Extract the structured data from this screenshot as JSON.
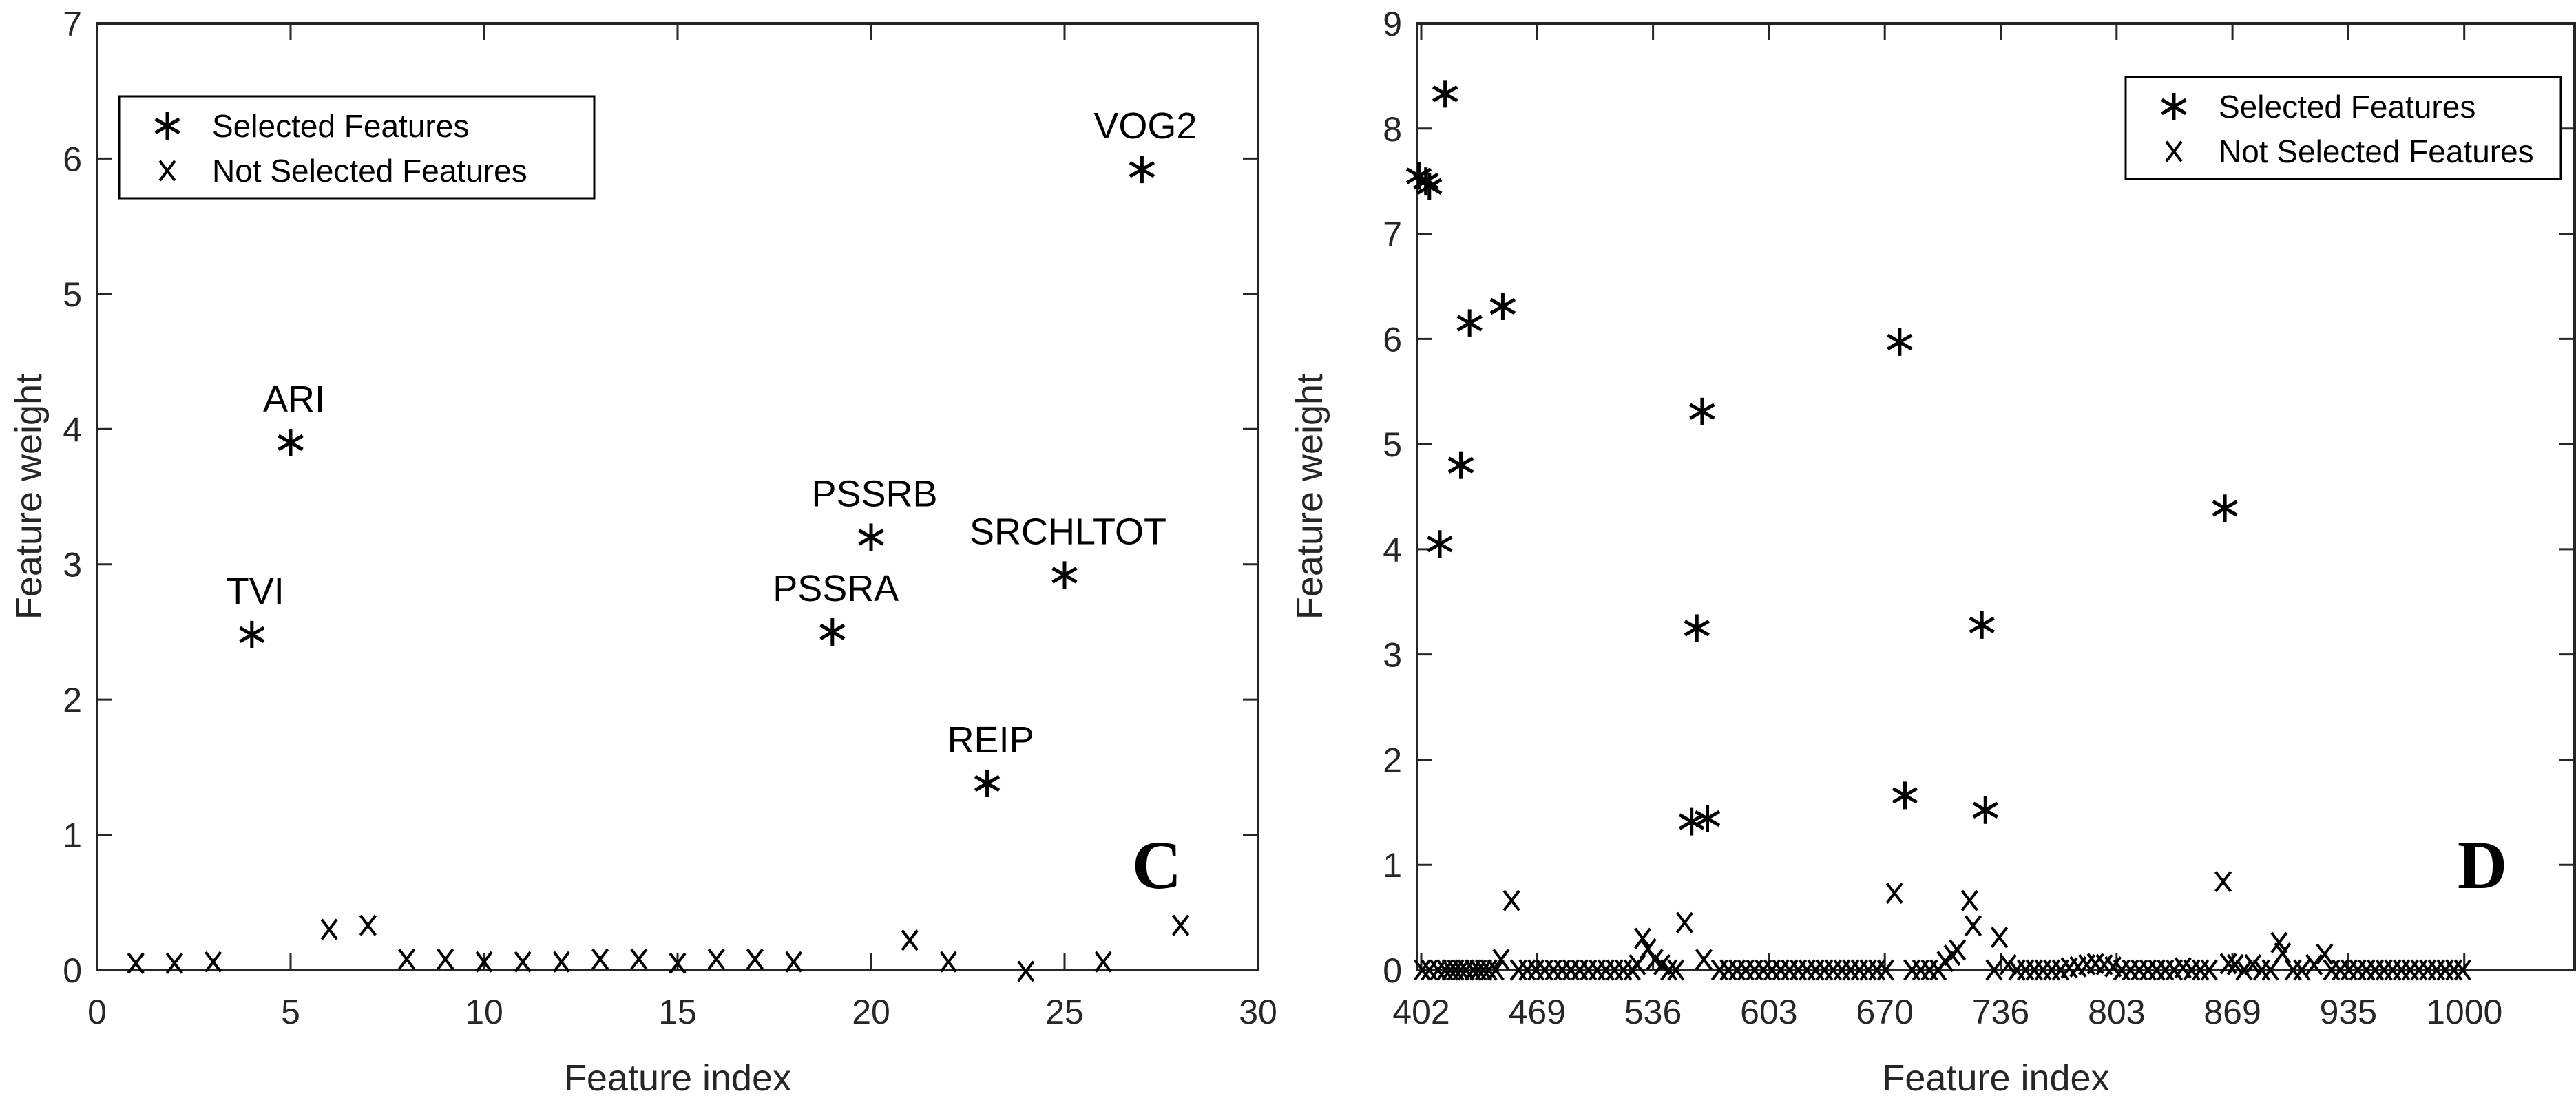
{
  "chart_data": [
    {
      "panel_label": "C",
      "type": "scatter",
      "xlabel": "Feature index",
      "ylabel": "Feature weight",
      "xlim": [
        0,
        30
      ],
      "ylim": [
        0,
        7
      ],
      "xticks": [
        "0",
        "5",
        "10",
        "15",
        "20",
        "25",
        "30"
      ],
      "yticks": [
        "0",
        "1",
        "2",
        "3",
        "4",
        "5",
        "6",
        "7"
      ],
      "legend": {
        "placement": "top-left",
        "entries": [
          "Selected Features",
          "Not Selected Features"
        ]
      },
      "selected": [
        {
          "x": 4,
          "y": 2.48,
          "label": "TVI"
        },
        {
          "x": 5,
          "y": 3.9,
          "label": "ARI"
        },
        {
          "x": 19,
          "y": 2.5,
          "label": "PSSRA"
        },
        {
          "x": 20,
          "y": 3.2,
          "label": "PSSRB"
        },
        {
          "x": 23,
          "y": 1.38,
          "label": "REIP"
        },
        {
          "x": 25,
          "y": 2.92,
          "label": "SRCHLTOT"
        },
        {
          "x": 27,
          "y": 5.92,
          "label": "VOG2"
        }
      ],
      "not_selected": [
        [
          1,
          0.05
        ],
        [
          2,
          0.05
        ],
        [
          3,
          0.06
        ],
        [
          6,
          0.3
        ],
        [
          7,
          0.33
        ],
        [
          8,
          0.08
        ],
        [
          9,
          0.08
        ],
        [
          10,
          0.06
        ],
        [
          11,
          0.06
        ],
        [
          12,
          0.06
        ],
        [
          13,
          0.08
        ],
        [
          14,
          0.08
        ],
        [
          15,
          0.05
        ],
        [
          16,
          0.08
        ],
        [
          17,
          0.08
        ],
        [
          18,
          0.06
        ],
        [
          21,
          0.22
        ],
        [
          22,
          0.06
        ],
        [
          24,
          -0.01
        ],
        [
          26,
          0.06
        ],
        [
          28,
          0.33
        ]
      ]
    },
    {
      "panel_label": "D",
      "type": "scatter",
      "xlabel": "Feature index",
      "ylabel": "Feature weight",
      "xlim": [
        402,
        1064
      ],
      "ylim": [
        0,
        9
      ],
      "xticks": [
        "402",
        "469",
        "536",
        "603",
        "670",
        "736",
        "803",
        "869",
        "935",
        "1000"
      ],
      "yticks": [
        "0",
        "1",
        "2",
        "3",
        "4",
        "5",
        "6",
        "7",
        "8",
        "9"
      ],
      "legend": {
        "placement": "top-right",
        "entries": [
          "Selected Features",
          "Not Selected Features"
        ]
      },
      "selected": [
        [
          403,
          7.55
        ],
        [
          407,
          7.5
        ],
        [
          409,
          7.45
        ],
        [
          418,
          8.33
        ],
        [
          415,
          4.05
        ],
        [
          427,
          4.8
        ],
        [
          432,
          6.15
        ],
        [
          451,
          6.31
        ],
        [
          559,
          1.41
        ],
        [
          562,
          3.25
        ],
        [
          565,
          5.31
        ],
        [
          568,
          1.44
        ],
        [
          678,
          5.97
        ],
        [
          681,
          1.66
        ],
        [
          725,
          3.28
        ],
        [
          727,
          1.52
        ],
        [
          864,
          4.39
        ]
      ],
      "not_selected": [
        [
          405,
          0
        ],
        [
          409,
          0
        ],
        [
          414,
          0
        ],
        [
          418,
          0
        ],
        [
          421,
          0
        ],
        [
          424,
          0
        ],
        [
          427,
          0
        ],
        [
          430,
          0
        ],
        [
          434,
          0
        ],
        [
          437,
          0
        ],
        [
          440,
          0
        ],
        [
          443,
          0
        ],
        [
          447,
          0
        ],
        [
          450,
          0.1
        ],
        [
          456,
          0.66
        ],
        [
          460,
          0
        ],
        [
          465,
          0
        ],
        [
          470,
          0
        ],
        [
          475,
          0
        ],
        [
          480,
          0
        ],
        [
          485,
          0
        ],
        [
          490,
          0
        ],
        [
          495,
          0
        ],
        [
          500,
          0
        ],
        [
          505,
          0
        ],
        [
          510,
          0
        ],
        [
          515,
          0
        ],
        [
          520,
          0
        ],
        [
          525,
          0
        ],
        [
          528,
          0.05
        ],
        [
          531,
          0.3
        ],
        [
          534,
          0.2
        ],
        [
          538,
          0.1
        ],
        [
          542,
          0.05
        ],
        [
          546,
          0
        ],
        [
          550,
          0
        ],
        [
          555,
          0.45
        ],
        [
          566,
          0.1
        ],
        [
          575,
          0
        ],
        [
          580,
          0
        ],
        [
          585,
          0
        ],
        [
          590,
          0
        ],
        [
          595,
          0
        ],
        [
          600,
          0
        ],
        [
          605,
          0
        ],
        [
          610,
          0
        ],
        [
          615,
          0
        ],
        [
          620,
          0
        ],
        [
          625,
          0
        ],
        [
          630,
          0
        ],
        [
          635,
          0
        ],
        [
          640,
          0
        ],
        [
          645,
          0
        ],
        [
          650,
          0
        ],
        [
          655,
          0
        ],
        [
          660,
          0
        ],
        [
          665,
          0
        ],
        [
          670,
          0
        ],
        [
          675,
          0.73
        ],
        [
          685,
          0
        ],
        [
          690,
          0
        ],
        [
          695,
          0
        ],
        [
          700,
          0
        ],
        [
          704,
          0.08
        ],
        [
          708,
          0.14
        ],
        [
          711,
          0.19
        ],
        [
          718,
          0.66
        ],
        [
          720,
          0.42
        ],
        [
          735,
          0.31
        ],
        [
          732,
          0
        ],
        [
          740,
          0.05
        ],
        [
          745,
          0
        ],
        [
          750,
          0
        ],
        [
          755,
          0
        ],
        [
          760,
          0
        ],
        [
          765,
          0
        ],
        [
          770,
          0
        ],
        [
          775,
          0.02
        ],
        [
          780,
          0.03
        ],
        [
          785,
          0.05
        ],
        [
          790,
          0.06
        ],
        [
          795,
          0.05
        ],
        [
          800,
          0.03
        ],
        [
          805,
          0
        ],
        [
          810,
          0
        ],
        [
          815,
          0
        ],
        [
          820,
          0
        ],
        [
          825,
          0
        ],
        [
          830,
          0
        ],
        [
          835,
          0
        ],
        [
          840,
          0.02
        ],
        [
          845,
          0
        ],
        [
          850,
          0
        ],
        [
          855,
          0
        ],
        [
          863,
          0.84
        ],
        [
          866,
          0.06
        ],
        [
          870,
          0.05
        ],
        [
          875,
          0
        ],
        [
          880,
          0.05
        ],
        [
          885,
          0
        ],
        [
          890,
          0
        ],
        [
          895,
          0.26
        ],
        [
          897,
          0.16
        ],
        [
          903,
          0
        ],
        [
          908,
          0
        ],
        [
          915,
          0.05
        ],
        [
          921,
          0.15
        ],
        [
          925,
          0
        ],
        [
          930,
          0
        ],
        [
          935,
          0
        ],
        [
          940,
          0
        ],
        [
          945,
          0
        ],
        [
          950,
          0
        ],
        [
          955,
          0
        ],
        [
          960,
          0
        ],
        [
          965,
          0
        ],
        [
          970,
          0
        ],
        [
          975,
          0
        ],
        [
          980,
          0
        ],
        [
          985,
          0
        ],
        [
          990,
          0
        ],
        [
          995,
          0
        ],
        [
          1000,
          0
        ]
      ]
    }
  ]
}
